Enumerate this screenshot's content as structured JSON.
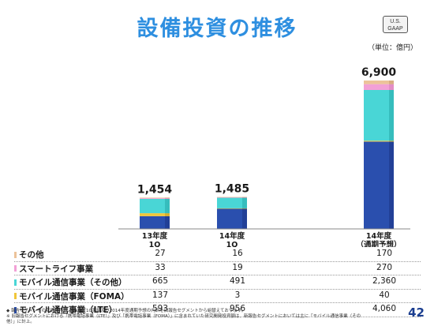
{
  "title": "設備投資の推移",
  "gaap": [
    "U.S.",
    "GAAP"
  ],
  "unit": "（単位：億円）",
  "page": "42",
  "footnotes": [
    "◆ 報告セグメントの変更に伴い、13年度1Q実績及び2014年度通期予想の内訳を旧報告セグメントから組替えております。",
    "※ 旧報告セグメントにおける「携帯電話事業（LTE）」及び「携帯電話事業（FOMA）」に含まれていた研究開発投資額は、新報告セグメントにおいては主に「モバイル通信事業（その他）」に計上。"
  ],
  "colors": {
    "lte": "#2a4fae",
    "foma": "#f0c63a",
    "mobile_other": "#49d6d6",
    "smartlife": "#f2a0d6",
    "other": "#ecc39a",
    "title": "#2e8fe0"
  },
  "chart_data": {
    "type": "bar",
    "stacked": true,
    "categories": [
      [
        "13年度",
        "1Q"
      ],
      [
        "14年度",
        "1Q"
      ],
      [
        "14年度",
        "（通期予想）"
      ]
    ],
    "totals": [
      "1,454",
      "1,485",
      "6,900"
    ],
    "series": [
      {
        "name": "モバイル通信事業（LTE）",
        "key": "lte",
        "values": [
          593,
          956,
          4060
        ],
        "labels": [
          "593",
          "956",
          "4,060"
        ]
      },
      {
        "name": "モバイル通信事業（FOMA）",
        "key": "foma",
        "values": [
          137,
          3,
          40
        ],
        "labels": [
          "137",
          "3",
          "40"
        ]
      },
      {
        "name": "モバイル通信事業（その他）",
        "key": "mobile_other",
        "values": [
          665,
          491,
          2360
        ],
        "labels": [
          "665",
          "491",
          "2,360"
        ]
      },
      {
        "name": "スマートライフ事業",
        "key": "smartlife",
        "values": [
          33,
          19,
          270
        ],
        "labels": [
          "33",
          "19",
          "270"
        ]
      },
      {
        "name": "その他",
        "key": "other",
        "values": [
          27,
          16,
          170
        ],
        "labels": [
          "27",
          "16",
          "170"
        ]
      }
    ],
    "table_order": [
      "other",
      "smartlife",
      "mobile_other",
      "foma",
      "lte"
    ]
  }
}
